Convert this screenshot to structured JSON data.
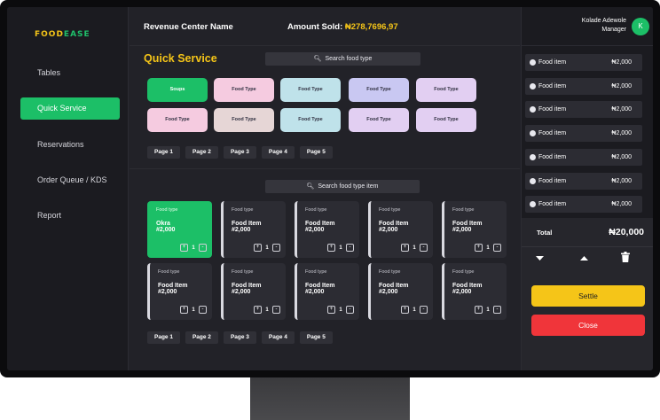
{
  "app": {
    "logo_part1": "FOOD",
    "logo_part2": "EASE"
  },
  "sidebar": {
    "items": [
      {
        "label": "Tables",
        "active": false
      },
      {
        "label": "Quick Service",
        "active": true
      },
      {
        "label": "Reservations",
        "active": false
      },
      {
        "label": "Order Queue / KDS",
        "active": false
      },
      {
        "label": "Report",
        "active": false
      }
    ]
  },
  "header": {
    "revenue_center": "Revenue Center Name",
    "amount_label": "Amount Sold:",
    "amount_value": "₦278,7696,97"
  },
  "user": {
    "name": "Kolade Adewole",
    "role": "Manager",
    "initial": "K"
  },
  "quick_service": {
    "title": "Quick Service",
    "search_placeholder": "Search food type",
    "chips": [
      {
        "label": "Soups",
        "color": "#1cbf67",
        "text_color": "#ffffff"
      },
      {
        "label": "Food Type",
        "color": "#f5cbe0"
      },
      {
        "label": "Food Type",
        "color": "#bfe2ea"
      },
      {
        "label": "Food Type",
        "color": "#c9c8f2"
      },
      {
        "label": "Food Type",
        "color": "#e2cff2"
      },
      {
        "label": "Food Type",
        "color": "#f5cbe0"
      },
      {
        "label": "Food Type",
        "color": "#e6d6d6"
      },
      {
        "label": "Food Type",
        "color": "#bfe2ea"
      },
      {
        "label": "Food Type",
        "color": "#e2cff2"
      },
      {
        "label": "Food Type",
        "color": "#e2cff2"
      }
    ],
    "pages": [
      "Page 1",
      "Page 2",
      "Page 3",
      "Page 4",
      "Page 5"
    ]
  },
  "items_section": {
    "search_placeholder": "Search food type item",
    "cards": [
      {
        "type": "Food type",
        "name": "Okra",
        "price": "#2,000",
        "qty": "1",
        "active": true
      },
      {
        "type": "Food type",
        "name": "Food Item",
        "price": "#2,000",
        "qty": "1"
      },
      {
        "type": "Food type",
        "name": "Food Item",
        "price": "#2,000",
        "qty": "1"
      },
      {
        "type": "Food type",
        "name": "Food Item",
        "price": "#2,000",
        "qty": "1"
      },
      {
        "type": "Food type",
        "name": "Food Item",
        "price": "#2,000",
        "qty": "1"
      },
      {
        "type": "Food type",
        "name": "Food Item",
        "price": "#2,000",
        "qty": "1"
      },
      {
        "type": "Food type",
        "name": "Food Item",
        "price": "#2,000",
        "qty": "1"
      },
      {
        "type": "Food type",
        "name": "Food Item",
        "price": "#2,000",
        "qty": "1"
      },
      {
        "type": "Food type",
        "name": "Food Item",
        "price": "#2,000",
        "qty": "1"
      },
      {
        "type": "Food type",
        "name": "Food Item",
        "price": "#2,000",
        "qty": "1"
      }
    ],
    "pages": [
      "Page 1",
      "Page 2",
      "Page 3",
      "Page 4",
      "Page 5"
    ]
  },
  "order": {
    "items": [
      {
        "name": "Food item",
        "price": "₦2,000"
      },
      {
        "name": "Food item",
        "price": "₦2,000"
      },
      {
        "name": "Food item",
        "price": "₦2,000"
      },
      {
        "name": "Food item",
        "price": "₦2,000"
      },
      {
        "name": "Food item",
        "price": "₦2,000"
      },
      {
        "name": "Food item",
        "price": "₦2,000"
      },
      {
        "name": "Food item",
        "price": "₦2,000"
      }
    ],
    "total_label": "Total",
    "total_value": "₦20,000",
    "settle_label": "Settle",
    "close_label": "Close"
  },
  "colors": {
    "accent_green": "#1cbf67",
    "accent_yellow": "#f5c518",
    "danger_red": "#f0353a"
  }
}
